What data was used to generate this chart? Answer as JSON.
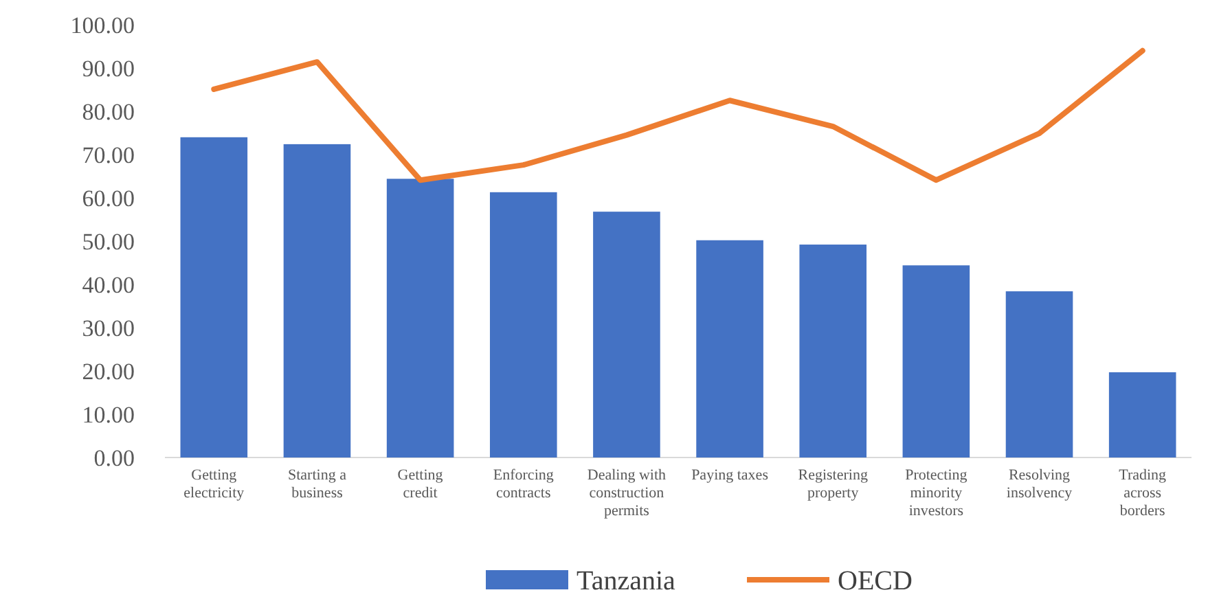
{
  "chart_data": {
    "type": "bar",
    "categories": [
      "Getting electricity",
      "Starting a business",
      "Getting credit",
      "Enforcing contracts",
      "Dealing with construction permits",
      "Paying taxes",
      "Registering property",
      "Protecting minority investors",
      "Resolving insolvency",
      "Trading across borders"
    ],
    "series": [
      {
        "name": "Tanzania",
        "color": "#4472c4",
        "values": [
          74.0,
          72.4,
          64.4,
          61.3,
          56.8,
          50.2,
          49.2,
          44.4,
          38.4,
          19.7
        ]
      },
      {
        "name": "OECD",
        "type": "line",
        "color": "#ed7d31",
        "values": [
          85.1,
          91.4,
          64.1,
          67.6,
          74.5,
          82.5,
          76.5,
          64.1,
          74.9,
          94.0
        ]
      }
    ],
    "ylim": [
      0,
      100
    ],
    "yticks": [
      {
        "value": 0,
        "label": "0.00"
      },
      {
        "value": 10,
        "label": "10.00"
      },
      {
        "value": 20,
        "label": "20.00"
      },
      {
        "value": 30,
        "label": "30.00"
      },
      {
        "value": 40,
        "label": "40.00"
      },
      {
        "value": 50,
        "label": "50.00"
      },
      {
        "value": 60,
        "label": "60.00"
      },
      {
        "value": 70,
        "label": "70.00"
      },
      {
        "value": 80,
        "label": "80.00"
      },
      {
        "value": 90,
        "label": "90.00"
      },
      {
        "value": 100,
        "label": "100.00"
      }
    ],
    "grid": false,
    "legend": "bottom"
  }
}
